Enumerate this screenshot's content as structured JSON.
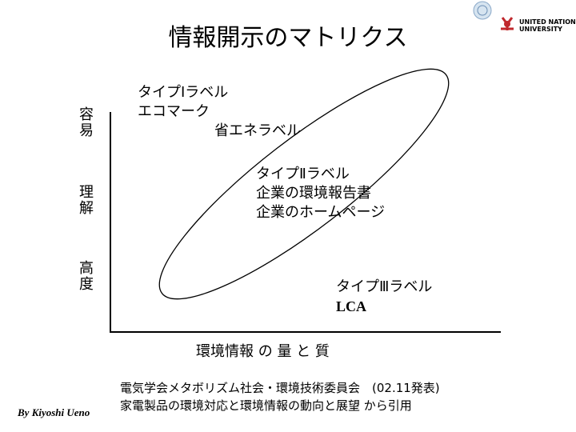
{
  "header": {
    "title": "情報開示のマトリクス",
    "logo_lines": [
      "UNITED NATIONS",
      "UNIVERSITY"
    ]
  },
  "axes": {
    "y_labels": [
      "容易",
      "理解",
      "高度"
    ],
    "x_label": "環境情報 の 量 と 質"
  },
  "groups": [
    {
      "lines": [
        "タイプⅠラベル",
        "エコマーク"
      ]
    },
    {
      "lines": [
        "省エネラベル"
      ]
    },
    {
      "lines": [
        "タイプⅡラベル",
        "企業の環境報告書",
        "企業のホームページ"
      ]
    },
    {
      "lines": [
        "タイプⅢラベル",
        "LCA"
      ]
    }
  ],
  "source": {
    "lines": [
      "電気学会メタボリズム社会・環境技術委員会　(02.11発表)",
      "家電製品の環境対応と環境情報の動向と展望 から引用"
    ]
  },
  "credit": "By Kiyoshi Ueno"
}
